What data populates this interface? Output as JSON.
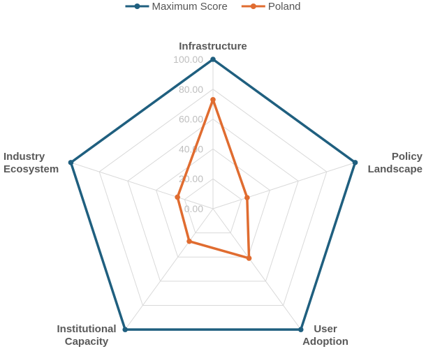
{
  "chart_data": {
    "type": "radar",
    "axes": [
      "Infrastructure",
      "Policy Landscape",
      "User Adoption",
      "Institutional Capacity",
      "Industry Ecosystem"
    ],
    "axis_label_lines": [
      [
        "Infrastructure"
      ],
      [
        "Policy",
        "Landscape"
      ],
      [
        "User",
        "Adoption"
      ],
      [
        "Institutional",
        "Capacity"
      ],
      [
        "Industry",
        "Ecosystem"
      ]
    ],
    "range": [
      0,
      100
    ],
    "ticks": [
      "0.00",
      "20.00",
      "40.00",
      "60.00",
      "80.00",
      "100.00"
    ],
    "tick_values": [
      0,
      20,
      40,
      60,
      80,
      100
    ],
    "grid": true,
    "legend_position": "top",
    "series": [
      {
        "name": "Maximum Score",
        "color": "#1f5f7f",
        "values": [
          100,
          100,
          100,
          100,
          100
        ]
      },
      {
        "name": "Poland",
        "color": "#e06c30",
        "values": [
          73,
          24,
          41,
          27,
          25
        ]
      }
    ]
  }
}
